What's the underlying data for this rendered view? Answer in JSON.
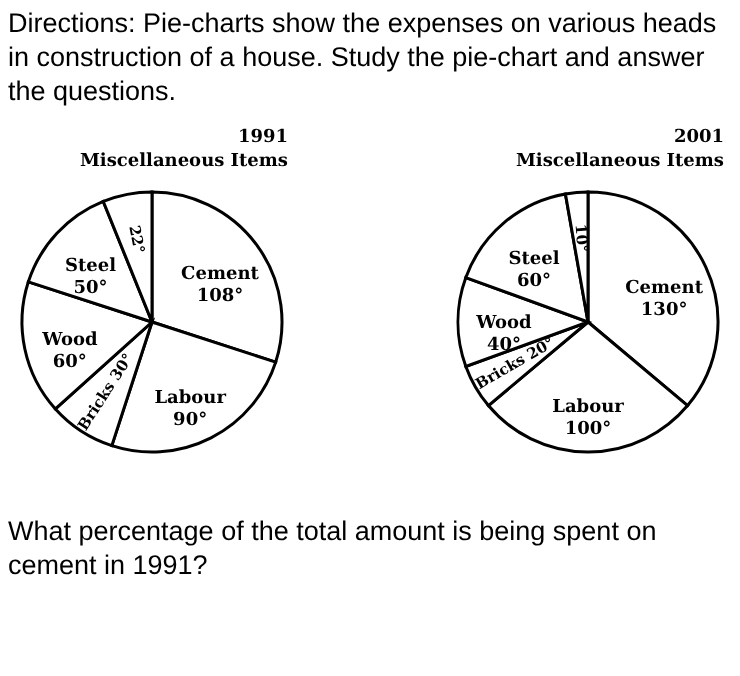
{
  "chart_data": [
    {
      "type": "pie",
      "title": "1991",
      "categories": [
        "Cement",
        "Labour",
        "Bricks",
        "Wood",
        "Steel",
        "Miscellaneous Items"
      ],
      "values": [
        108,
        90,
        30,
        60,
        50,
        22
      ],
      "value_labels": [
        "108°",
        "90°",
        "30°",
        "60°",
        "50°",
        "22°"
      ],
      "colors": [
        "#ffffff",
        "#ffffff",
        "#ffffff",
        "#ffffff",
        "#ffffff",
        "#ffffff"
      ],
      "annotations": [
        "Directions: Pie-charts show the expenses on various heads in construction of a house. Study the pie-chart and answer the questions."
      ]
    },
    {
      "type": "pie",
      "title": "2001",
      "categories": [
        "Cement",
        "Labour",
        "Bricks",
        "Wood",
        "Steel",
        "Miscellaneous Items"
      ],
      "values": [
        130,
        100,
        20,
        40,
        60,
        10
      ],
      "value_labels": [
        "130°",
        "100°",
        "20°",
        "40°",
        "60°",
        "10°"
      ],
      "colors": [
        "#ffffff",
        "#ffffff",
        "#ffffff",
        "#ffffff",
        "#ffffff",
        "#ffffff"
      ],
      "annotations": [
        "What percentage of the total amount is being spent on cement in 1991?"
      ]
    }
  ]
}
